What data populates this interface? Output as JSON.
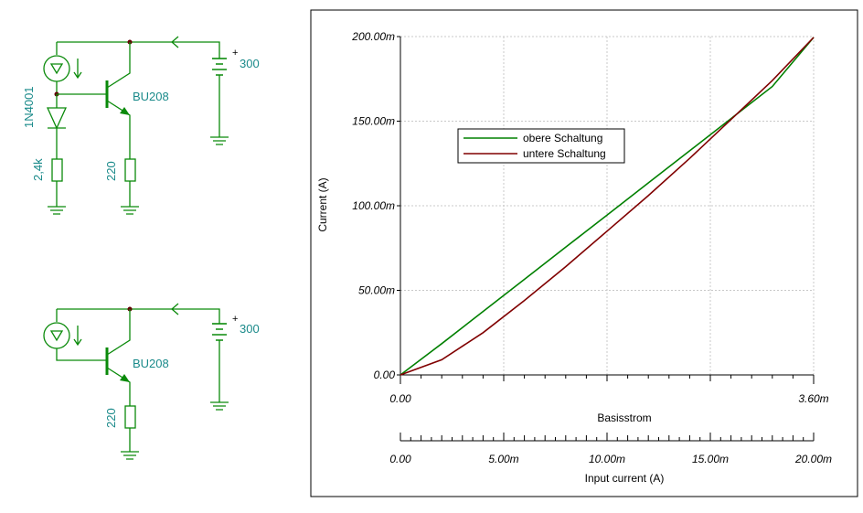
{
  "circuit_top": {
    "diode_label": "1N4001",
    "transistor_label": "BU208",
    "voltage_label": "300",
    "resistor_base_label": "2,4k",
    "resistor_emitter_label": "220"
  },
  "circuit_bottom": {
    "transistor_label": "BU208",
    "voltage_label": "300",
    "resistor_emitter_label": "220"
  },
  "plus_sign": "+",
  "chart_data": {
    "type": "line",
    "title": "",
    "ylabel": "Current (A)",
    "xlabel": "Basisstrom",
    "x2label": "Input current (A)",
    "ylim": [
      0,
      0.2
    ],
    "xlim": [
      0,
      0.0036
    ],
    "x2lim": [
      0,
      0.02
    ],
    "yticks": [
      "0.00",
      "50.00m",
      "100.00m",
      "150.00m",
      "200.00m"
    ],
    "xticks": [
      "0.00",
      "3.60m"
    ],
    "x2ticks": [
      "0.00",
      "5.00m",
      "10.00m",
      "15.00m",
      "20.00m"
    ],
    "grid": true,
    "legend_position": "upper-left",
    "series": [
      {
        "name": "obere Schaltung",
        "color": "#008000",
        "x": [
          0,
          0.002,
          0.004,
          0.006,
          0.008,
          0.01,
          0.012,
          0.014,
          0.016,
          0.018,
          0.02
        ],
        "y": [
          0,
          0.0185,
          0.0375,
          0.0565,
          0.0755,
          0.0945,
          0.1135,
          0.1325,
          0.1515,
          0.1705,
          0.1995
        ]
      },
      {
        "name": "untere Schaltung",
        "color": "#800000",
        "x": [
          0,
          0.002,
          0.004,
          0.006,
          0.008,
          0.01,
          0.012,
          0.014,
          0.016,
          0.018,
          0.02
        ],
        "y": [
          0,
          0.009,
          0.025,
          0.044,
          0.064,
          0.085,
          0.106,
          0.128,
          0.151,
          0.174,
          0.1995
        ]
      }
    ]
  }
}
